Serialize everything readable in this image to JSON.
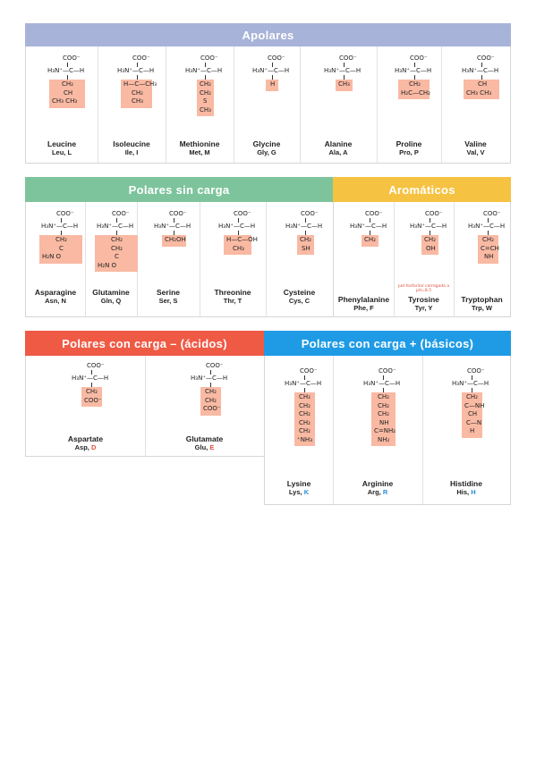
{
  "sections": {
    "apolares": "Apolares",
    "polares_sin_carga": "Polares sin carga",
    "aromaticos": "Aromáticos",
    "acidos": "Polares con carga – (ácidos)",
    "basicos": "Polares con carga + (básicos)"
  },
  "colors": {
    "apolares": "#a7b3d8",
    "polares_sin_carga": "#7dc49c",
    "aromaticos": "#f5c242",
    "acidos": "#ef5a45",
    "basicos": "#1f9be5",
    "r_group": "#f9b9a3"
  },
  "backbone": {
    "carboxyl": "COO⁻",
    "amino": "H₃N⁺",
    "alpha_c": "C",
    "h": "H"
  },
  "apolares": [
    {
      "name": "Leucine",
      "abbr": "Leu, L",
      "r": [
        "CH₂",
        "CH",
        "CH₃  CH₃"
      ]
    },
    {
      "name": "Isoleucine",
      "abbr": "Ile, I",
      "r": [
        "H—C—CH₃",
        "CH₂",
        "CH₃"
      ]
    },
    {
      "name": "Methionine",
      "abbr": "Met, M",
      "r": [
        "CH₂",
        "CH₂",
        "S",
        "CH₃"
      ]
    },
    {
      "name": "Glycine",
      "abbr": "Gly, G",
      "r": [
        "H"
      ]
    },
    {
      "name": "Alanine",
      "abbr": "Ala, A",
      "r": [
        "CH₃"
      ]
    },
    {
      "name": "Proline",
      "abbr": "Pro, P",
      "r": [
        "CH₂",
        "H₂C—CH₂"
      ]
    },
    {
      "name": "Valine",
      "abbr": "Val, V",
      "r": [
        "CH",
        "CH₃  CH₃"
      ]
    }
  ],
  "polares": [
    {
      "name": "Asparagine",
      "abbr": "Asn, N",
      "r": [
        "CH₂",
        "C",
        "H₂N      O"
      ]
    },
    {
      "name": "Glutamine",
      "abbr": "Gln, Q",
      "r": [
        "CH₂",
        "CH₂",
        "C",
        "H₂N      O"
      ]
    },
    {
      "name": "Serine",
      "abbr": "Ser, S",
      "r": [
        "CH₂OH"
      ]
    },
    {
      "name": "Threonine",
      "abbr": "Thr, T",
      "r": [
        "H—C—OH",
        "CH₃"
      ]
    },
    {
      "name": "Cysteine",
      "abbr": "Cys, C",
      "r": [
        "CH₂",
        "SH"
      ]
    }
  ],
  "aromaticos": [
    {
      "name": "Phenylalanine",
      "abbr": "Phe, F",
      "r": [
        "CH₂"
      ]
    },
    {
      "name": "Tyrosine",
      "abbr": "Tyr, Y",
      "r": [
        "CH₂",
        "OH"
      ],
      "note": "pot fosforilar carregada a pH=8.5"
    },
    {
      "name": "Tryptophan",
      "abbr": "Trp, W",
      "r": [
        "CH₂",
        "C=CH",
        "NH"
      ]
    }
  ],
  "acidos": [
    {
      "name": "Aspartate",
      "abbr": "Asp, D",
      "r": [
        "CH₂",
        "COO⁻"
      ]
    },
    {
      "name": "Glutamate",
      "abbr": "Glu, E",
      "r": [
        "CH₂",
        "CH₂",
        "COO⁻"
      ]
    }
  ],
  "basicos": [
    {
      "name": "Lysine",
      "abbr": "Lys, K",
      "r": [
        "CH₂",
        "CH₂",
        "CH₂",
        "CH₂",
        "CH₂",
        "⁺NH₃"
      ]
    },
    {
      "name": "Arginine",
      "abbr": "Arg, R",
      "r": [
        "CH₂",
        "CH₂",
        "CH₂",
        "NH",
        "C=NH₂",
        "NH₂"
      ]
    },
    {
      "name": "Histidine",
      "abbr": "His, H",
      "r": [
        "CH₂",
        "C—NH",
        "CH",
        "C—N",
        "H"
      ]
    }
  ]
}
